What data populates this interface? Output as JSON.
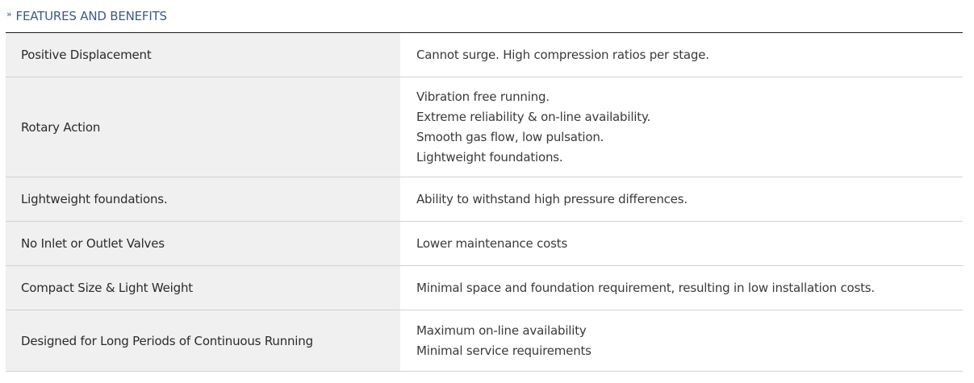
{
  "header": {
    "marker": "»",
    "title": "FEATURES AND BENEFITS"
  },
  "colors": {
    "header_text": "#3a5a8c",
    "feature_bg": "#f0f0f0",
    "top_rule": "#1a1a1a",
    "row_divider": "#d2d2d2"
  },
  "rows": [
    {
      "feature": "Positive Displacement",
      "benefits": [
        "Cannot surge. High compression ratios per stage."
      ]
    },
    {
      "feature": "Rotary Action",
      "benefits": [
        "Vibration free running.",
        "Extreme reliability & on-line availability.",
        "Smooth gas flow, low pulsation.",
        "Lightweight foundations."
      ]
    },
    {
      "feature": "Lightweight foundations.",
      "benefits": [
        "Ability to withstand high pressure differences."
      ]
    },
    {
      "feature": "No Inlet or Outlet Valves",
      "benefits": [
        "Lower maintenance costs"
      ]
    },
    {
      "feature": "Compact Size & Light Weight",
      "benefits": [
        "Minimal space and foundation requirement, resulting in low installation costs."
      ]
    },
    {
      "feature": "Designed for Long Periods of Continuous Running",
      "benefits": [
        "Maximum on-line availability",
        "Minimal service requirements"
      ]
    }
  ]
}
